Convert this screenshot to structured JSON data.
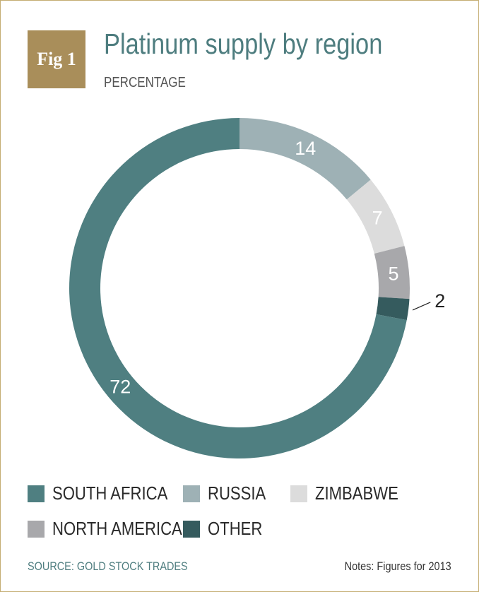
{
  "header": {
    "badge": "Fig 1",
    "title": "Platinum supply by region",
    "subtitle": "PERCENTAGE"
  },
  "chart_data": {
    "type": "pie",
    "title": "Platinum supply by region",
    "subtitle": "PERCENTAGE",
    "donut": true,
    "start_angle_deg": 0,
    "direction": "clockwise",
    "legend_placement": "bottom",
    "categories": [
      "RUSSIA",
      "ZIMBABWE",
      "NORTH AMERICA",
      "OTHER",
      "SOUTH AFRICA"
    ],
    "values": [
      14,
      7,
      5,
      2,
      72
    ],
    "labels": [
      "14",
      "7",
      "5",
      "2",
      "72"
    ],
    "colors": [
      "#9eb1b5",
      "#dcdcdc",
      "#a8a8ab",
      "#355b5e",
      "#4f7f81"
    ]
  },
  "legend": [
    {
      "label": "SOUTH AFRICA",
      "color": "#4f7f81"
    },
    {
      "label": "RUSSIA",
      "color": "#9eb1b5"
    },
    {
      "label": "ZIMBABWE",
      "color": "#dcdcdc"
    },
    {
      "label": "NORTH AMERICA",
      "color": "#a8a8ab"
    },
    {
      "label": "OTHER",
      "color": "#355b5e"
    }
  ],
  "footer": {
    "source": "SOURCE: GOLD STOCK TRADES",
    "notes": "Notes: Figures for 2013"
  }
}
